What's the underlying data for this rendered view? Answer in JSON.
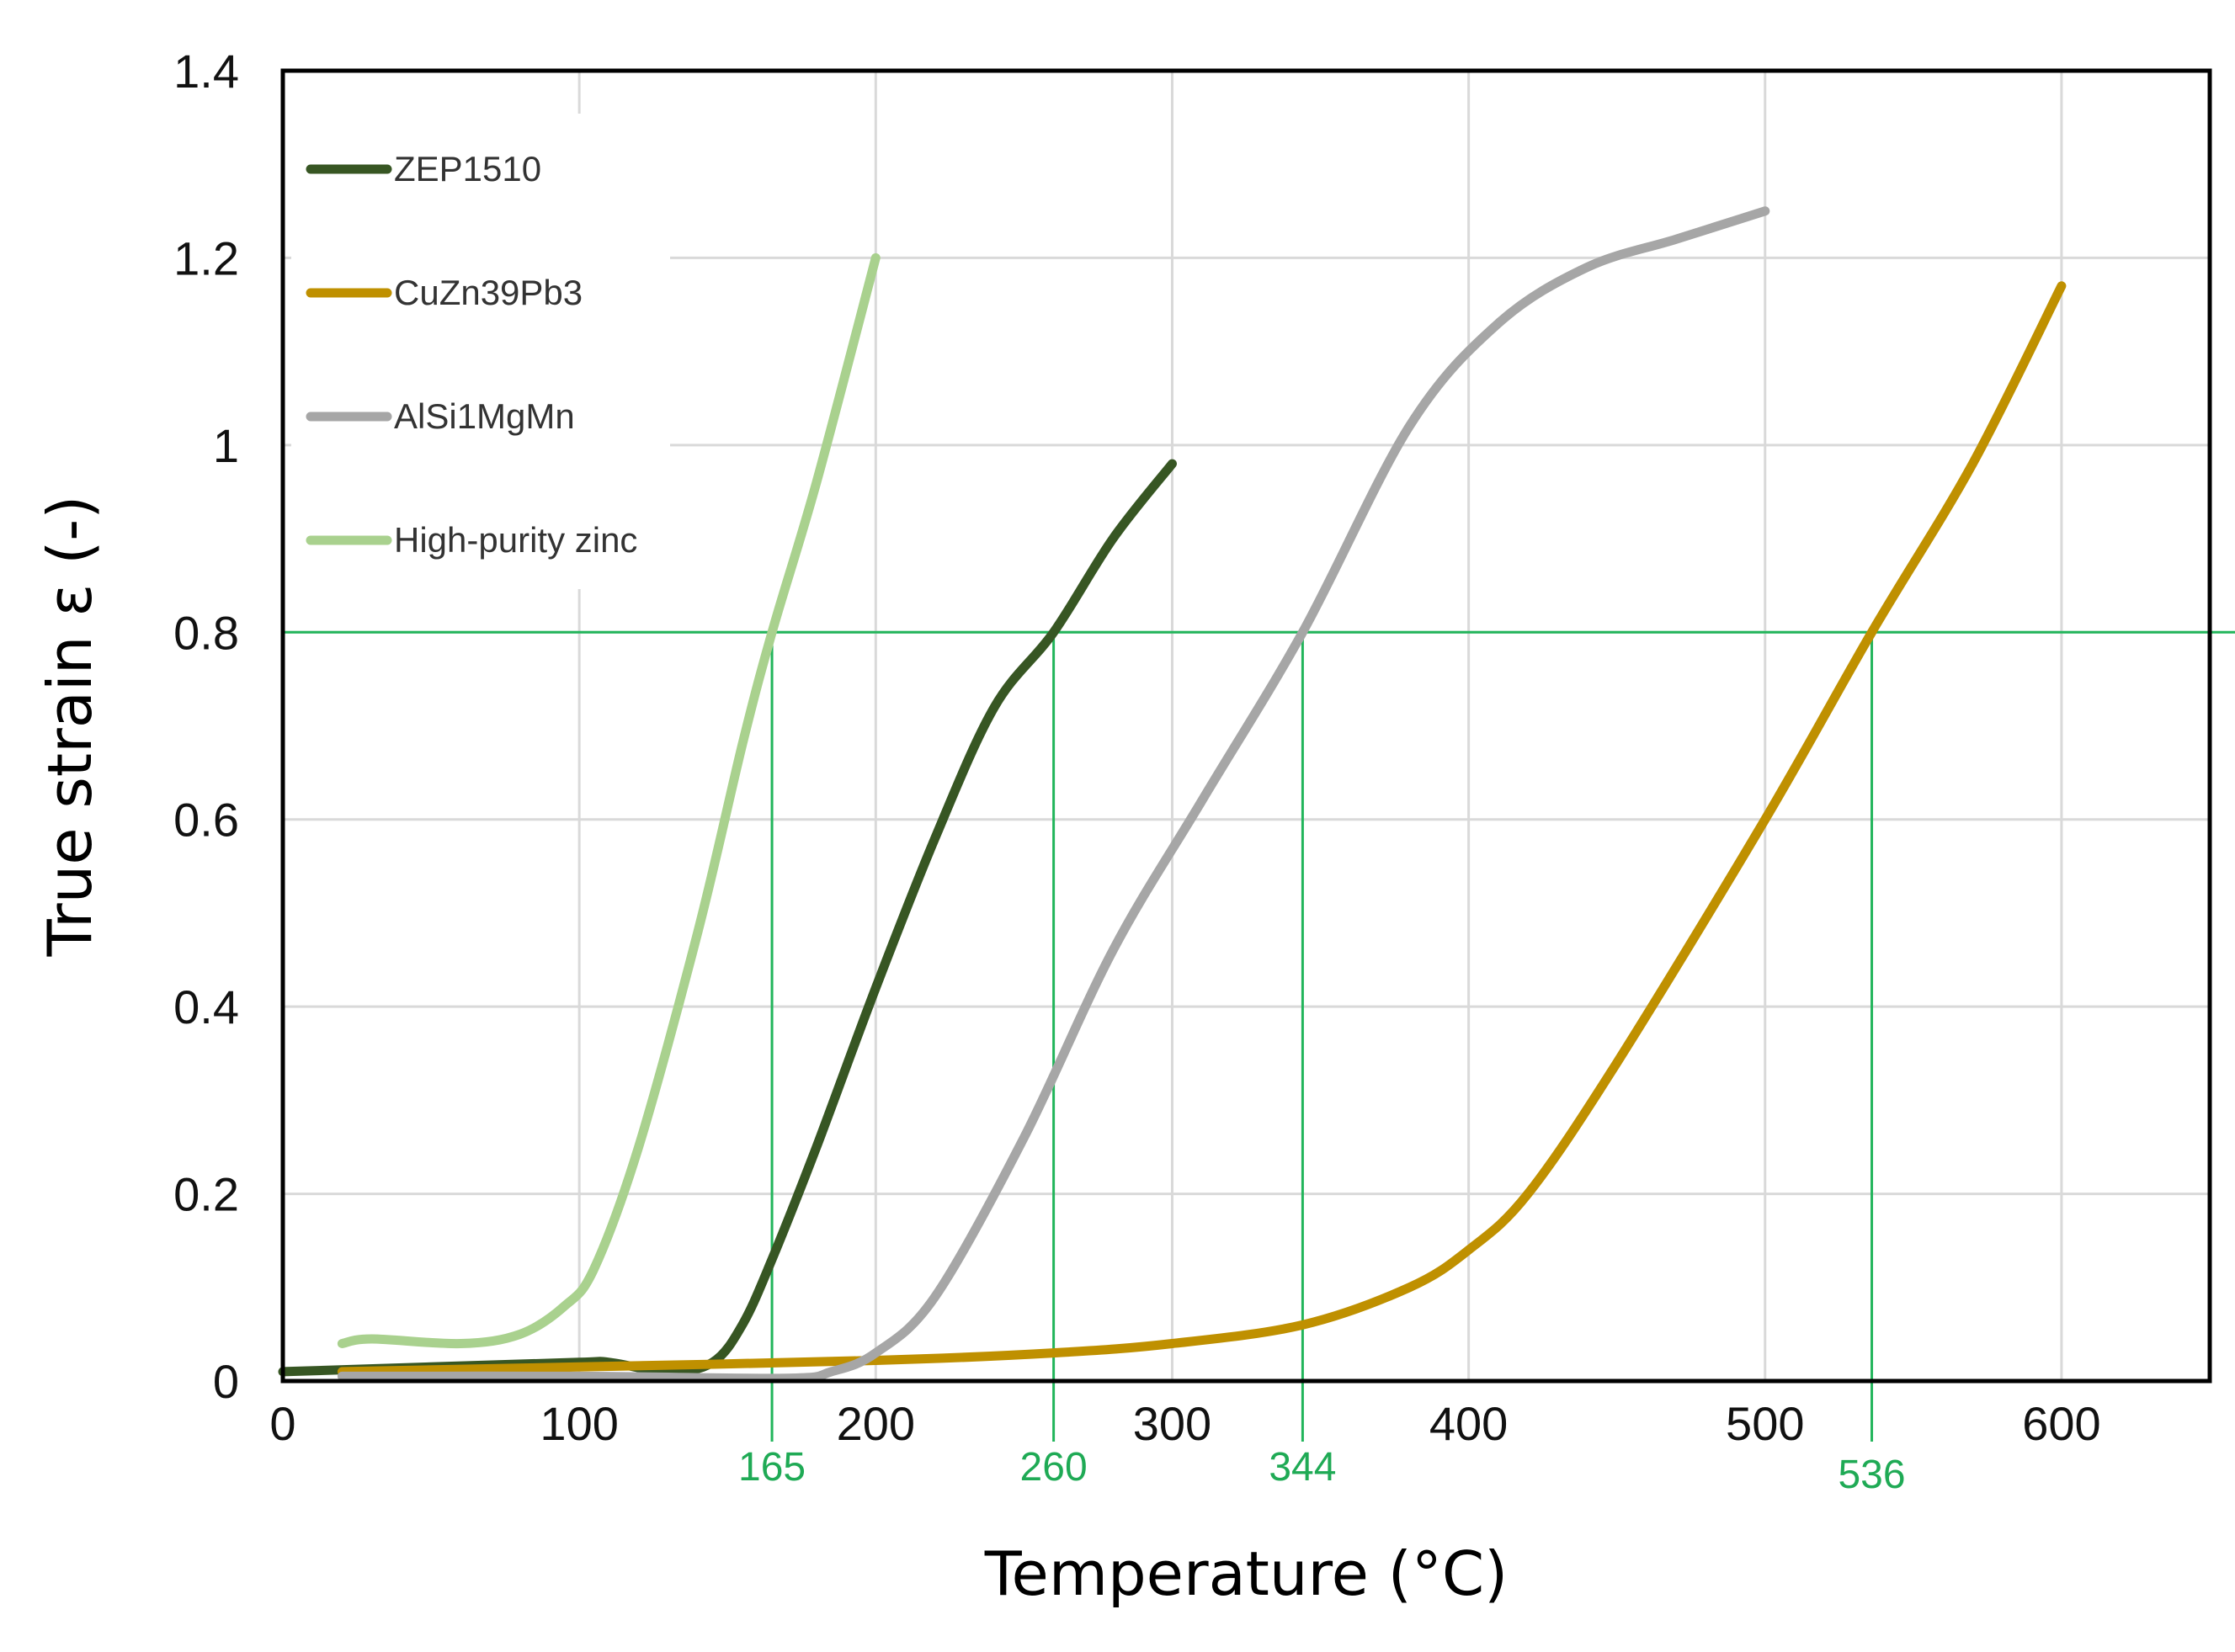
{
  "chart_data": {
    "type": "line",
    "title": "",
    "xlabel": "Temperature (°C)",
    "ylabel": "True strain ε (-)",
    "xlim": [
      0,
      650
    ],
    "ylim": [
      0,
      1.4
    ],
    "x_ticks": [
      0,
      100,
      200,
      300,
      400,
      500,
      600
    ],
    "x_tick_labels": [
      "0",
      "100",
      "200",
      "300",
      "400",
      "500",
      "600"
    ],
    "y_ticks": [
      0,
      0.2,
      0.4,
      0.6,
      0.8,
      1.0,
      1.2,
      1.4
    ],
    "y_tick_labels": [
      "0",
      "0.2",
      "0.4",
      "0.6",
      "0.8",
      "1",
      "1.2",
      "1.4"
    ],
    "grid": true,
    "legend_position": "top-left",
    "series": [
      {
        "name": "ZEP1510",
        "color": "#375623",
        "x": [
          0,
          50,
          100,
          110,
          130,
          145,
          155,
          165,
          180,
          200,
          220,
          240,
          260,
          280,
          300
        ],
        "y": [
          0.01,
          0.015,
          0.02,
          0.02,
          0.01,
          0.02,
          0.06,
          0.13,
          0.25,
          0.42,
          0.58,
          0.72,
          0.8,
          0.9,
          0.98
        ]
      },
      {
        "name": "CuZn39Pb3",
        "color": "#BF9000",
        "x": [
          20,
          100,
          200,
          260,
          300,
          344,
          380,
          400,
          420,
          450,
          500,
          536,
          570,
          600
        ],
        "y": [
          0.01,
          0.015,
          0.022,
          0.03,
          0.04,
          0.06,
          0.1,
          0.14,
          0.2,
          0.34,
          0.6,
          0.8,
          0.98,
          1.17
        ]
      },
      {
        "name": "AlSi1MgMn",
        "color": "#A6A6A6",
        "x": [
          20,
          100,
          170,
          185,
          200,
          220,
          250,
          280,
          310,
          344,
          380,
          410,
          440,
          470,
          500
        ],
        "y": [
          0.005,
          0.005,
          0.003,
          0.01,
          0.03,
          0.09,
          0.26,
          0.46,
          0.62,
          0.8,
          1.02,
          1.13,
          1.19,
          1.22,
          1.25
        ]
      },
      {
        "name": "High-purity zinc",
        "color": "#A9D18E",
        "x": [
          20,
          30,
          60,
          80,
          95,
          105,
          120,
          140,
          155,
          165,
          180,
          200
        ],
        "y": [
          0.04,
          0.045,
          0.04,
          0.05,
          0.08,
          0.12,
          0.25,
          0.48,
          0.68,
          0.8,
          0.96,
          1.2
        ]
      }
    ],
    "reference_line": {
      "y": 0.8,
      "color": "#22B55B"
    },
    "annotations": [
      {
        "x": 165,
        "label": "165"
      },
      {
        "x": 260,
        "label": "260"
      },
      {
        "x": 344,
        "label": "344"
      },
      {
        "x": 536,
        "label": "536"
      }
    ]
  }
}
